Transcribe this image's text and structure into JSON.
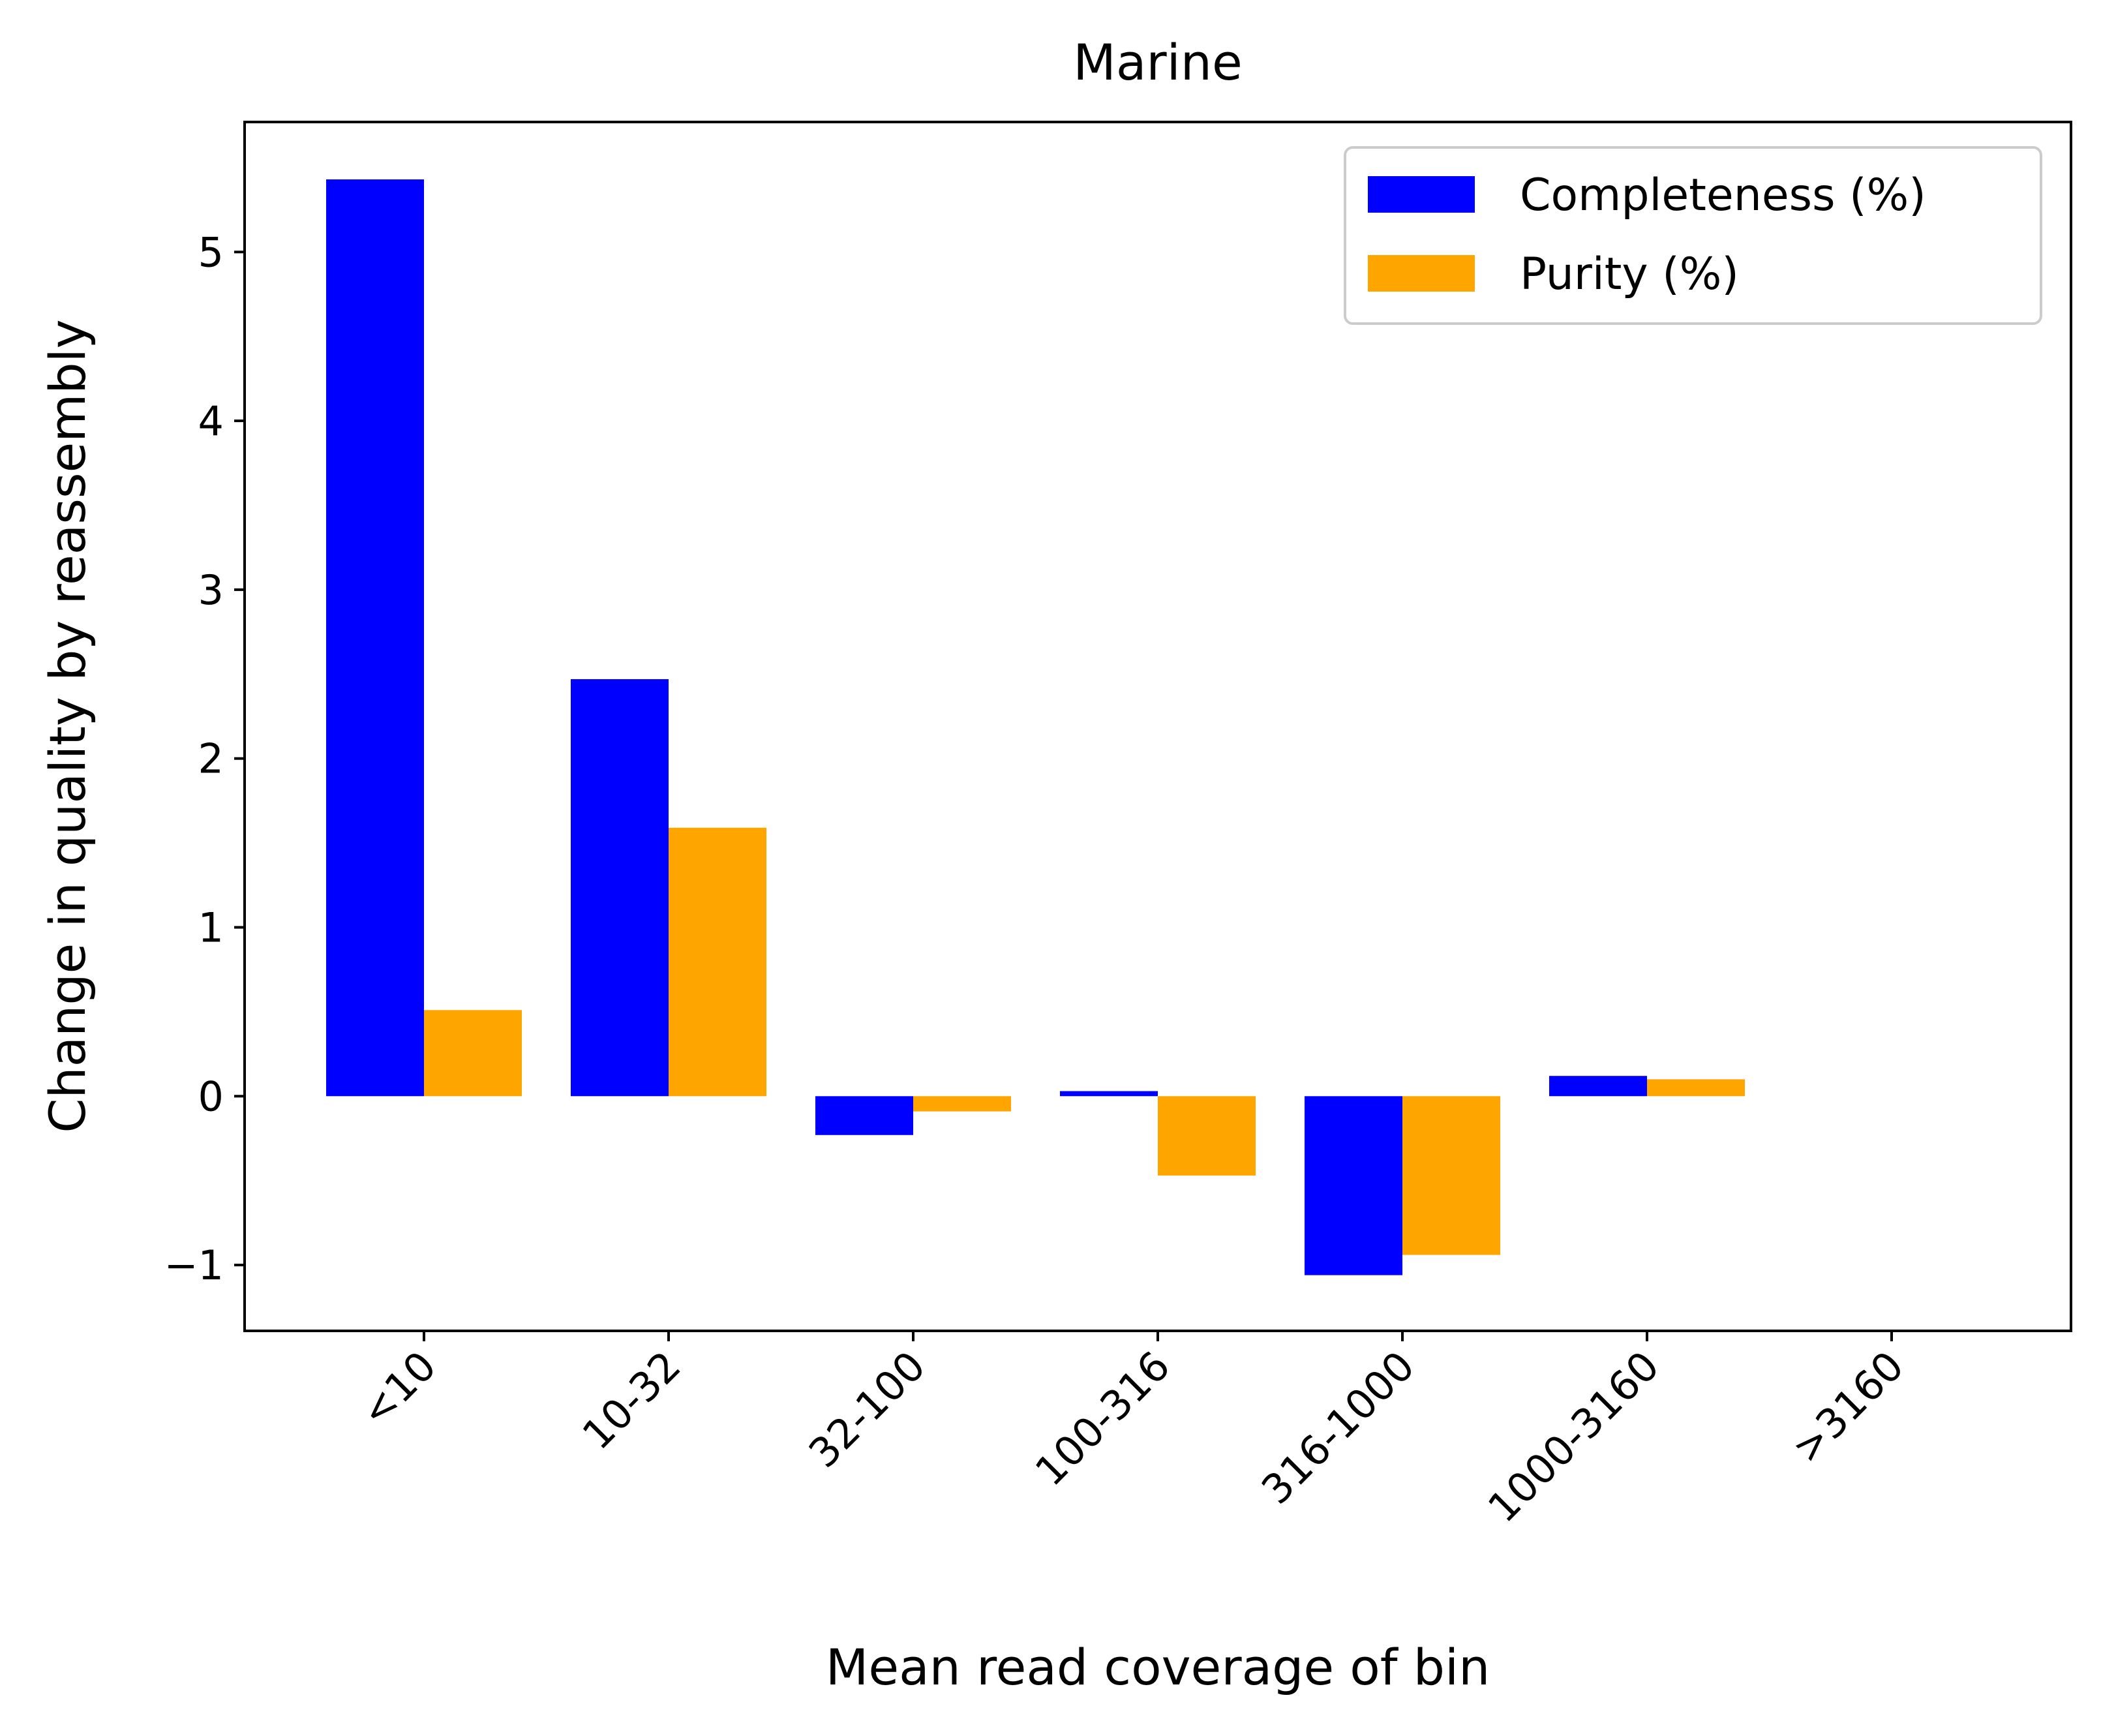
{
  "chart_data": {
    "type": "bar",
    "title": "Marine",
    "xlabel": "Mean read coverage of bin",
    "ylabel": "Change in quality by reassembly",
    "categories": [
      "<10",
      "10-32",
      "32-100",
      "100-316",
      "316-1000",
      "1000-3160",
      ">3160"
    ],
    "series": [
      {
        "name": "Completeness (%)",
        "color": "#0000ff",
        "values": [
          5.43,
          2.47,
          -0.23,
          0.03,
          -1.06,
          0.12,
          null
        ]
      },
      {
        "name": "Purity (%)",
        "color": "#ffa500",
        "values": [
          0.51,
          1.59,
          -0.09,
          -0.47,
          -0.94,
          0.1,
          null
        ]
      }
    ],
    "yticks": [
      -1,
      0,
      1,
      2,
      3,
      4,
      5
    ],
    "ytick_labels": [
      "−1",
      "0",
      "1",
      "2",
      "3",
      "4",
      "5"
    ],
    "ylim": [
      -1.39,
      5.77
    ],
    "x_tick_rotation": 45,
    "grid": false,
    "legend_position": "upper right"
  }
}
